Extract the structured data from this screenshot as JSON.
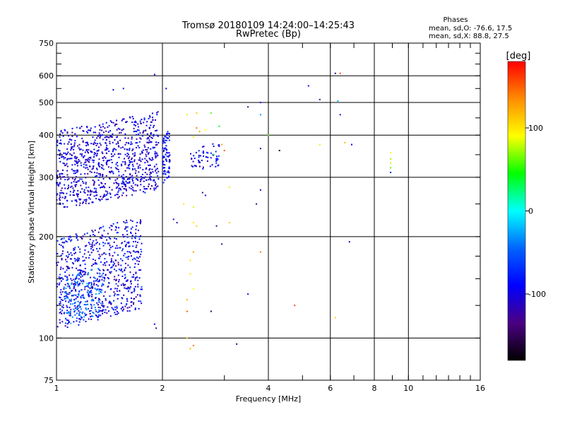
{
  "chart_data": {
    "type": "scatter",
    "title": "Tromsø 20180109 14:24:00–14:25:43",
    "subtitle": "RwPretec (Bp)",
    "xlabel": "Frequency [MHz]",
    "ylabel": "Stationary phase Virtual Height [km]",
    "x_scale": "log",
    "y_scale": "log",
    "xlim": [
      1,
      16
    ],
    "ylim": [
      75,
      750
    ],
    "x_ticks": [
      "1",
      "2",
      "4",
      "6",
      "8",
      "10",
      "16"
    ],
    "x_tick_values": [
      1,
      2,
      4,
      6,
      8,
      10,
      16
    ],
    "y_ticks": [
      "75",
      "100",
      "200",
      "300",
      "400",
      "500",
      "600",
      "750"
    ],
    "y_tick_values": [
      75,
      100,
      200,
      300,
      400,
      500,
      600,
      750
    ],
    "grid": true,
    "phase_stats": {
      "heading": "Phases",
      "line_o": "mean, sd,O: -76.6, 17.5",
      "line_x": "mean, sd,X:  88.8, 27.5"
    },
    "colorbar": {
      "label": "[deg]",
      "ticks": [
        "100",
        "0",
        "-100"
      ],
      "tick_values": [
        100,
        0,
        -100
      ],
      "range": [
        -180,
        180
      ],
      "colors": [
        "#000000",
        "#4b0082",
        "#0000ff",
        "#0064ff",
        "#00ffff",
        "#00ff00",
        "#ffff00",
        "#ff8c00",
        "#ff0000"
      ]
    },
    "clusters": [
      {
        "f": [
          1.0,
          1.95
        ],
        "h": [
          240,
          470
        ],
        "phase": [
          -130,
          -70
        ],
        "count": 900
      },
      {
        "f": [
          1.0,
          1.75
        ],
        "h": [
          105,
          230
        ],
        "phase": [
          -130,
          -60
        ],
        "count": 750
      },
      {
        "f": [
          1.05,
          1.35
        ],
        "h": [
          108,
          165
        ],
        "phase": [
          -60,
          -20
        ],
        "count": 120
      },
      {
        "f": [
          2.0,
          2.1
        ],
        "h": [
          280,
          420
        ],
        "phase": [
          -110,
          -60
        ],
        "count": 80
      },
      {
        "f": [
          2.4,
          2.9
        ],
        "h": [
          310,
          380
        ],
        "phase": [
          -120,
          -70
        ],
        "count": 60
      }
    ],
    "points": [
      {
        "f": 1.9,
        "h": 605,
        "phase": -100
      },
      {
        "f": 2.05,
        "h": 550,
        "phase": -100
      },
      {
        "f": 1.45,
        "h": 545,
        "phase": -110
      },
      {
        "f": 1.55,
        "h": 550,
        "phase": -80
      },
      {
        "f": 2.35,
        "h": 460,
        "phase": 100
      },
      {
        "f": 2.5,
        "h": 465,
        "phase": 110
      },
      {
        "f": 2.75,
        "h": 465,
        "phase": 60
      },
      {
        "f": 2.5,
        "h": 420,
        "phase": 140
      },
      {
        "f": 2.55,
        "h": 410,
        "phase": 130
      },
      {
        "f": 2.45,
        "h": 395,
        "phase": 100
      },
      {
        "f": 2.65,
        "h": 415,
        "phase": 90
      },
      {
        "f": 2.9,
        "h": 425,
        "phase": 40
      },
      {
        "f": 3.0,
        "h": 360,
        "phase": 150
      },
      {
        "f": 2.95,
        "h": 375,
        "phase": 130
      },
      {
        "f": 2.8,
        "h": 350,
        "phase": 30
      },
      {
        "f": 3.5,
        "h": 485,
        "phase": -130
      },
      {
        "f": 3.8,
        "h": 500,
        "phase": -90
      },
      {
        "f": 3.8,
        "h": 460,
        "phase": -30
      },
      {
        "f": 4.0,
        "h": 400,
        "phase": 60
      },
      {
        "f": 3.8,
        "h": 365,
        "phase": -120
      },
      {
        "f": 4.3,
        "h": 360,
        "phase": -170
      },
      {
        "f": 5.2,
        "h": 560,
        "phase": -90
      },
      {
        "f": 5.6,
        "h": 510,
        "phase": -130
      },
      {
        "f": 5.6,
        "h": 375,
        "phase": 100
      },
      {
        "f": 6.2,
        "h": 610,
        "phase": -120
      },
      {
        "f": 6.4,
        "h": 610,
        "phase": 160
      },
      {
        "f": 6.4,
        "h": 460,
        "phase": -120
      },
      {
        "f": 6.3,
        "h": 505,
        "phase": -20
      },
      {
        "f": 6.6,
        "h": 380,
        "phase": 120
      },
      {
        "f": 6.9,
        "h": 375,
        "phase": -90
      },
      {
        "f": 8.9,
        "h": 355,
        "phase": 90
      },
      {
        "f": 8.9,
        "h": 340,
        "phase": 70
      },
      {
        "f": 8.9,
        "h": 330,
        "phase": 80
      },
      {
        "f": 8.9,
        "h": 320,
        "phase": 60
      },
      {
        "f": 8.9,
        "h": 310,
        "phase": -100
      },
      {
        "f": 3.8,
        "h": 275,
        "phase": -110
      },
      {
        "f": 3.7,
        "h": 250,
        "phase": -130
      },
      {
        "f": 3.1,
        "h": 280,
        "phase": 100
      },
      {
        "f": 2.6,
        "h": 270,
        "phase": -140
      },
      {
        "f": 2.65,
        "h": 265,
        "phase": -100
      },
      {
        "f": 2.3,
        "h": 250,
        "phase": 100
      },
      {
        "f": 2.45,
        "h": 245,
        "phase": 80
      },
      {
        "f": 2.15,
        "h": 225,
        "phase": -100
      },
      {
        "f": 2.2,
        "h": 220,
        "phase": -120
      },
      {
        "f": 2.45,
        "h": 220,
        "phase": 100
      },
      {
        "f": 2.5,
        "h": 215,
        "phase": 110
      },
      {
        "f": 2.85,
        "h": 215,
        "phase": -130
      },
      {
        "f": 3.1,
        "h": 220,
        "phase": 110
      },
      {
        "f": 2.95,
        "h": 190,
        "phase": -140
      },
      {
        "f": 2.45,
        "h": 180,
        "phase": 130
      },
      {
        "f": 2.4,
        "h": 170,
        "phase": 100
      },
      {
        "f": 2.4,
        "h": 155,
        "phase": 100
      },
      {
        "f": 2.45,
        "h": 140,
        "phase": 90
      },
      {
        "f": 2.35,
        "h": 130,
        "phase": 120
      },
      {
        "f": 2.35,
        "h": 120,
        "phase": 150
      },
      {
        "f": 2.75,
        "h": 120,
        "phase": -150
      },
      {
        "f": 3.8,
        "h": 180,
        "phase": 140
      },
      {
        "f": 3.5,
        "h": 135,
        "phase": -100
      },
      {
        "f": 4.75,
        "h": 125,
        "phase": 160
      },
      {
        "f": 6.8,
        "h": 193,
        "phase": -100
      },
      {
        "f": 6.2,
        "h": 115,
        "phase": 110
      },
      {
        "f": 1.9,
        "h": 110,
        "phase": -100
      },
      {
        "f": 1.92,
        "h": 107,
        "phase": -110
      },
      {
        "f": 2.35,
        "h": 100,
        "phase": 110
      },
      {
        "f": 2.4,
        "h": 93,
        "phase": 120
      },
      {
        "f": 2.45,
        "h": 95,
        "phase": 140
      },
      {
        "f": 3.25,
        "h": 96,
        "phase": -140
      }
    ]
  }
}
